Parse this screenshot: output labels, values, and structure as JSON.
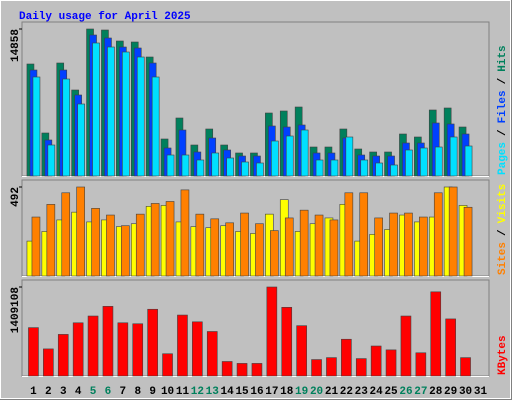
{
  "chart_data": {
    "type": "bar",
    "title": "Daily usage for April 2025",
    "categories": [
      "1",
      "2",
      "3",
      "4",
      "5",
      "6",
      "7",
      "8",
      "9",
      "10",
      "11",
      "12",
      "13",
      "14",
      "15",
      "16",
      "17",
      "18",
      "19",
      "20",
      "21",
      "22",
      "23",
      "24",
      "25",
      "26",
      "27",
      "28",
      "29",
      "30",
      "31"
    ],
    "category_colors": [
      "#000000",
      "#000000",
      "#000000",
      "#000000",
      "#00805c",
      "#00805c",
      "#000000",
      "#000000",
      "#000000",
      "#000000",
      "#000000",
      "#00805c",
      "#00805c",
      "#000000",
      "#000000",
      "#000000",
      "#000000",
      "#000000",
      "#00805c",
      "#00805c",
      "#000000",
      "#000000",
      "#000000",
      "#000000",
      "#000000",
      "#00805c",
      "#00805c",
      "#000000",
      "#000000",
      "#000000",
      "#000000"
    ],
    "legend_separator": "/",
    "panels": [
      {
        "ylim": [
          0,
          14858
        ],
        "yticks": [
          14858
        ],
        "series": [
          {
            "name": "Hits",
            "color": "#00805c",
            "values": [
              11320,
              4346,
              11421,
              8692,
              14858,
              14756,
              13644,
              13543,
              12027,
              3740,
              5862,
              3133,
              4750,
              3133,
              2325,
              2325,
              6367,
              6570,
              6974,
              2931,
              2931,
              4750,
              2729,
              2426,
              2426,
              4245,
              3942,
              6671,
              6873,
              4952,
              null
            ]
          },
          {
            "name": "Files",
            "color": "#0040ff",
            "values": [
              10713,
              3639,
              10713,
              8187,
              14251,
              13948,
              13038,
              12937,
              11421,
              2830,
              4649,
              2426,
              3841,
              2628,
              2021,
              2021,
              5054,
              4952,
              5155,
              2325,
              2325,
              3841,
              2122,
              2021,
              2021,
              3335,
              3335,
              5357,
              5256,
              4245,
              null
            ]
          },
          {
            "name": "Pages",
            "color": "#00e0ff",
            "values": [
              10006,
              3133,
              9804,
              7277,
              13442,
              13038,
              12533,
              12027,
              10006,
              2122,
              2122,
              1617,
              2325,
              1819,
              1415,
              1314,
              3537,
              4043,
              4649,
              1617,
              1617,
              3942,
              1617,
              1314,
              1112,
              2628,
              2830,
              2931,
              3942,
              3032,
              null
            ]
          }
        ]
      },
      {
        "ylim": [
          0,
          492
        ],
        "yticks": [
          492
        ],
        "series": [
          {
            "name": "Visits",
            "color": "#ffff00",
            "values": [
              193,
              246,
              310,
              353,
              299,
              310,
              273,
              289,
              385,
              390,
              299,
              273,
              267,
              278,
              246,
              235,
              342,
              422,
              246,
              289,
              321,
              396,
              193,
              230,
              257,
              337,
              299,
              326,
              492,
              390,
              null
            ]
          },
          {
            "name": "Sites",
            "color": "#ff8000",
            "values": [
              326,
              396,
              460,
              492,
              374,
              337,
              278,
              342,
              401,
              412,
              476,
              342,
              316,
              294,
              348,
              289,
              251,
              321,
              364,
              337,
              310,
              460,
              460,
              321,
              348,
              348,
              326,
              460,
              492,
              380,
              null
            ]
          }
        ]
      },
      {
        "ylim": [
          0,
          1409108
        ],
        "yticks": [
          1409108
        ],
        "series": [
          {
            "name": "KBytes",
            "color": "#ff0000",
            "values": [
              765800,
              428848,
              658588,
              842380,
              949592,
              1102752,
              842380,
              827064,
              1056804,
              352268,
              964908,
              857696,
              704536,
              229740,
              199108,
              199108,
              1409108,
              1087436,
              796432,
              260372,
              291004,
              582008,
              275688,
              474796,
              413532,
              949592,
              367584,
              1332492,
              903644,
              291004,
              null
            ]
          }
        ]
      }
    ]
  }
}
